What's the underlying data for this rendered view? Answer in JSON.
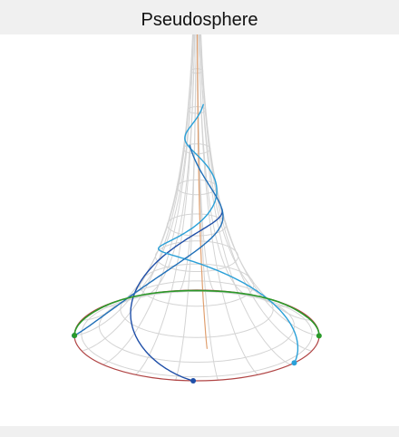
{
  "title": "Pseudosphere"
}
